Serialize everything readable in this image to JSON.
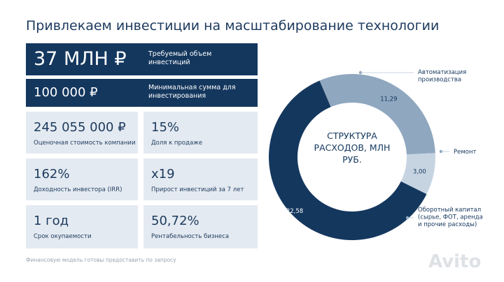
{
  "header": {
    "title": "Привлекаем инвестиции на масштабирование технологии"
  },
  "highlights": [
    {
      "value": "37 МЛН ₽",
      "label": "Требуемый объем инвестиций"
    },
    {
      "value": "100 000 ₽",
      "label": "Минимальная сумма для инвестирования"
    }
  ],
  "cards": [
    {
      "value": "245 055 000 ₽",
      "label": "Оценочная стоимость компании"
    },
    {
      "value": "15%",
      "label": "Доля к продаже"
    },
    {
      "value": "162%",
      "label": "Доходность инвестора (IRR)"
    },
    {
      "value": "x19",
      "label": "Прирост инвестиций за 7 лет"
    },
    {
      "value": "1 год",
      "label": "Срок окупаемости"
    },
    {
      "value": "50,72%",
      "label": "Рентабельность бизнеса"
    }
  ],
  "footer": "Финансовую модель готовы предоставить по запросу",
  "watermark": "Avito",
  "chart_data": {
    "type": "donut",
    "title": "СТРУКТУРА РАСХОДОВ, МЛН РУБ.",
    "categories": [
      "Автоматизация производства",
      "Ремонт",
      "Оборотный капитал (сырье, ФОТ, аренда и прочие расходы)"
    ],
    "values": [
      11.29,
      3.0,
      22.58
    ],
    "value_labels": [
      "11,29",
      "3,00",
      "22,58"
    ],
    "colors": [
      "#8fa7bf",
      "#c6d4e1",
      "#14375e"
    ]
  }
}
